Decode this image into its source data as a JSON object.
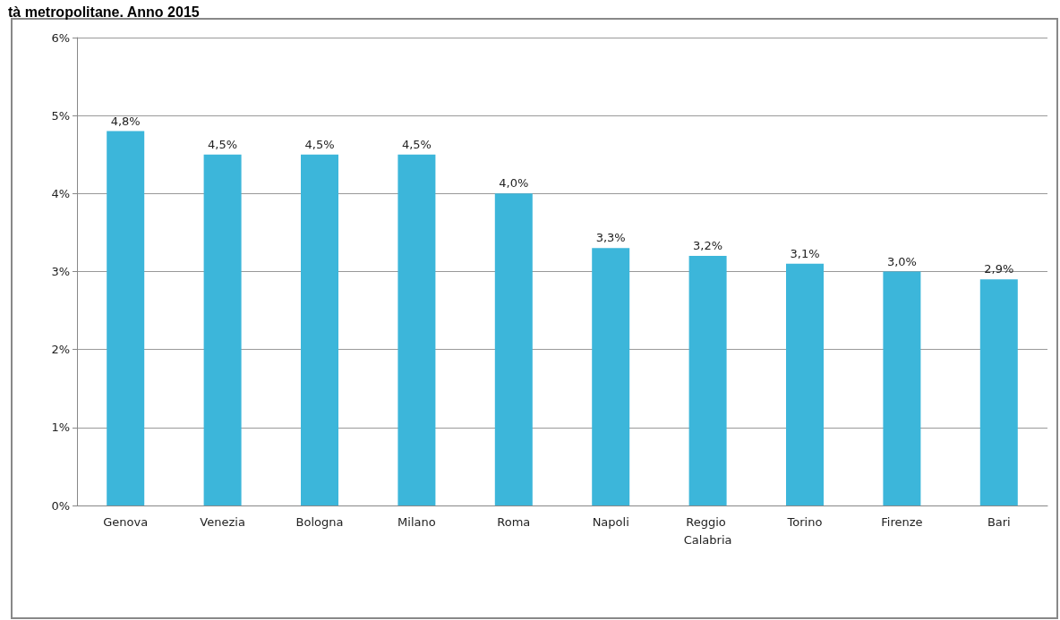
{
  "chart_data": {
    "type": "bar",
    "title": "tà metropolitane. Anno 2015",
    "categories": [
      "Genova",
      "Venezia",
      "Bologna",
      "Milano",
      "Roma",
      "Napoli",
      "Reggio Calabria",
      "Torino",
      "Firenze",
      "Bari"
    ],
    "values": [
      4.8,
      4.5,
      4.5,
      4.5,
      4.0,
      3.3,
      3.2,
      3.1,
      3.0,
      2.9
    ],
    "value_labels": [
      "4,8%",
      "4,5%",
      "4,5%",
      "4,5%",
      "4,0%",
      "3,3%",
      "3,2%",
      "3,1%",
      "3,0%",
      "2,9%"
    ],
    "color": "#3cb6da",
    "ylim": [
      0,
      6
    ],
    "yticks": [
      {
        "value": 0,
        "label": "0%"
      },
      {
        "value": 1,
        "label": "1%"
      },
      {
        "value": 2,
        "label": "2%"
      },
      {
        "value": 3,
        "label": "3%"
      },
      {
        "value": 4,
        "label": "4%"
      },
      {
        "value": 5,
        "label": "5%"
      },
      {
        "value": 6,
        "label": "6%"
      }
    ],
    "grid": "y"
  }
}
